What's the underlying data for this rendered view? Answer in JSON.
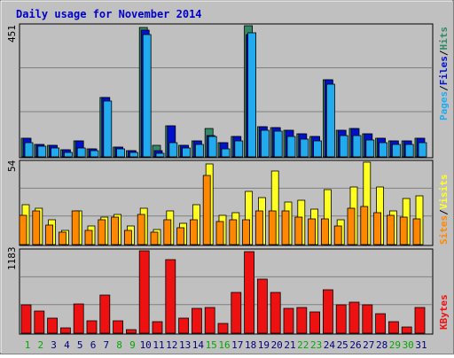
{
  "title": "Daily usage for November 2014",
  "colors": {
    "background": "#c0c0c0",
    "frame": "#ffffff",
    "title": "#0000cc",
    "hits": "#338866",
    "files": "#0011cc",
    "pages": "#22aaee",
    "visits": "#ffff22",
    "sites": "#ff8800",
    "kbytes": "#ee1111",
    "day_weekday": "#000080",
    "day_weekend": "#00aa00"
  },
  "chart_data": [
    {
      "type": "bar",
      "name": "hits-files-pages",
      "categories": [
        "1",
        "2",
        "3",
        "4",
        "5",
        "6",
        "7",
        "8",
        "9",
        "10",
        "11",
        "12",
        "13",
        "14",
        "15",
        "16",
        "17",
        "18",
        "19",
        "20",
        "21",
        "22",
        "23",
        "24",
        "25",
        "26",
        "27",
        "28",
        "29",
        "30",
        "31"
      ],
      "ymax_label": "451",
      "ylim": [
        0,
        451
      ],
      "series": [
        {
          "name": "Hits",
          "values": [
            64,
            44,
            39,
            24,
            56,
            28,
            204,
            34,
            20,
            444,
            40,
            106,
            40,
            56,
            99,
            50,
            70,
            451,
            104,
            101,
            92,
            80,
            70,
            266,
            90,
            96,
            80,
            64,
            56,
            56,
            64
          ]
        },
        {
          "name": "Files",
          "values": [
            64,
            44,
            39,
            24,
            56,
            28,
            204,
            34,
            20,
            437,
            20,
            106,
            40,
            56,
            72,
            50,
            70,
            422,
            104,
            101,
            92,
            80,
            70,
            266,
            90,
            96,
            80,
            64,
            56,
            56,
            64
          ]
        },
        {
          "name": "Pages",
          "values": [
            48,
            38,
            30,
            16,
            30,
            20,
            192,
            26,
            14,
            422,
            12,
            50,
            30,
            44,
            70,
            26,
            56,
            428,
            90,
            88,
            70,
            60,
            56,
            250,
            74,
            74,
            58,
            50,
            44,
            44,
            50
          ]
        }
      ]
    },
    {
      "type": "bar",
      "name": "visits-sites",
      "categories": [
        "1",
        "2",
        "3",
        "4",
        "5",
        "6",
        "7",
        "8",
        "9",
        "10",
        "11",
        "12",
        "13",
        "14",
        "15",
        "16",
        "17",
        "18",
        "19",
        "20",
        "21",
        "22",
        "23",
        "24",
        "25",
        "26",
        "27",
        "28",
        "29",
        "30",
        "31"
      ],
      "ymax_label": "54",
      "ylim": [
        0,
        54
      ],
      "series": [
        {
          "name": "Visits",
          "values": [
            26,
            24,
            16,
            9,
            22,
            12,
            18,
            20,
            12,
            24,
            10,
            22,
            14,
            26,
            53,
            19,
            21,
            35,
            31,
            48,
            28,
            29,
            23,
            36,
            16,
            38,
            54,
            38,
            22,
            30,
            32
          ]
        },
        {
          "name": "Sites",
          "values": [
            19,
            22,
            13,
            8,
            22,
            9,
            16,
            18,
            9,
            20,
            8,
            16,
            11,
            16,
            45,
            15,
            16,
            16,
            22,
            22,
            22,
            18,
            17,
            17,
            12,
            24,
            25,
            21,
            19,
            18,
            17
          ]
        }
      ]
    },
    {
      "type": "bar",
      "name": "kbytes",
      "categories": [
        "1",
        "2",
        "3",
        "4",
        "5",
        "6",
        "7",
        "8",
        "9",
        "10",
        "11",
        "12",
        "13",
        "14",
        "15",
        "16",
        "17",
        "18",
        "19",
        "20",
        "21",
        "22",
        "23",
        "24",
        "25",
        "26",
        "27",
        "28",
        "29",
        "30",
        "31"
      ],
      "ymax_label": "1183",
      "ylim": [
        0,
        1183
      ],
      "series": [
        {
          "name": "KBytes",
          "values": [
            404,
            318,
            212,
            74,
            418,
            178,
            551,
            184,
            48,
            1183,
            170,
            1057,
            212,
            356,
            375,
            141,
            590,
            1175,
            778,
            588,
            356,
            375,
            305,
            621,
            404,
            439,
            404,
            277,
            168,
            93,
            365
          ]
        }
      ]
    }
  ],
  "legend": {
    "top": {
      "pages": "Pages",
      "files": "Files",
      "hits": "Hits",
      "sep": "/"
    },
    "middle": {
      "sites": "Sites",
      "visits": "Visits",
      "sep": "/"
    },
    "bottom": {
      "kbytes": "KBytes"
    }
  },
  "weekend_days": [
    1,
    2,
    8,
    9,
    15,
    16,
    22,
    23,
    29,
    30
  ]
}
